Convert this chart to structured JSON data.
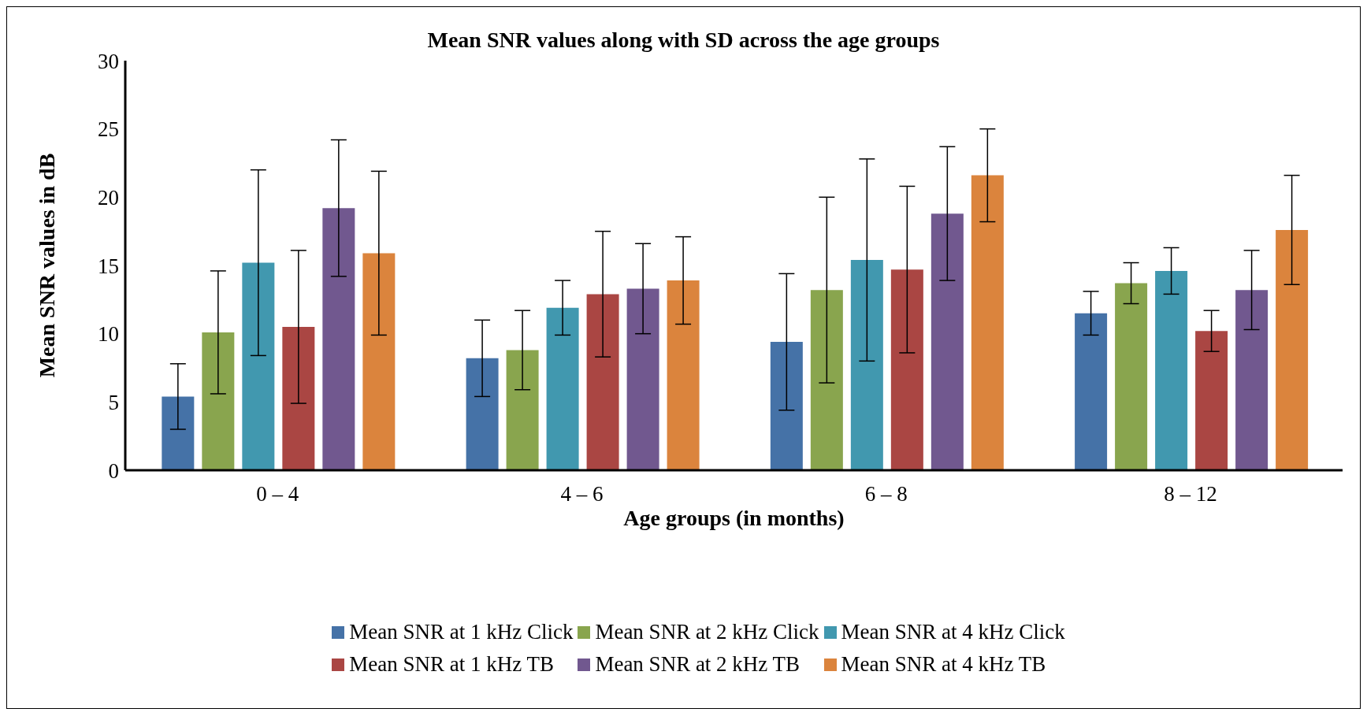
{
  "chart_data": {
    "type": "bar",
    "title": "Mean SNR values along with SD across the age groups",
    "xlabel": "Age groups (in months)",
    "ylabel": "Mean SNR values in dB",
    "categories": [
      "0 – 4",
      "4 – 6",
      "6 – 8",
      "8 – 12"
    ],
    "series": [
      {
        "name": "Mean SNR at 1 kHz Click",
        "color": "#4572a7",
        "values": [
          5.4,
          8.2,
          9.4,
          11.5
        ],
        "errors": [
          2.4,
          2.8,
          5.0,
          1.6
        ]
      },
      {
        "name": "Mean SNR at 2 kHz Click",
        "color": "#89a54e",
        "values": [
          10.1,
          8.8,
          13.2,
          13.7
        ],
        "errors": [
          4.5,
          2.9,
          6.8,
          1.5
        ]
      },
      {
        "name": "Mean SNR at 4 kHz Click",
        "color": "#4198af",
        "values": [
          15.2,
          11.9,
          15.4,
          14.6
        ],
        "errors": [
          6.8,
          2.0,
          7.4,
          1.7
        ]
      },
      {
        "name": "Mean SNR at 1 kHz TB",
        "color": "#aa4643",
        "values": [
          10.5,
          12.9,
          14.7,
          10.2
        ],
        "errors": [
          5.6,
          4.6,
          6.1,
          1.5
        ]
      },
      {
        "name": "Mean SNR at 2 kHz TB",
        "color": "#71588f",
        "values": [
          19.2,
          13.3,
          18.8,
          13.2
        ],
        "errors": [
          5.0,
          3.3,
          4.9,
          2.9
        ]
      },
      {
        "name": "Mean SNR at 4 kHz TB",
        "color": "#db843d",
        "values": [
          15.9,
          13.9,
          21.6,
          17.6
        ],
        "errors": [
          6.0,
          3.2,
          3.4,
          4.0
        ]
      }
    ],
    "ylim": [
      0,
      30
    ],
    "yticks": [
      0,
      5,
      10,
      15,
      20,
      25,
      30
    ],
    "grid": false,
    "legend": "bottom"
  }
}
